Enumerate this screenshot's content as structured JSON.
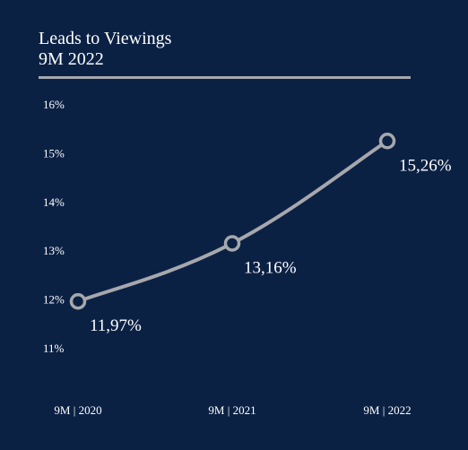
{
  "chart": {
    "title": "Leads to Viewings",
    "subtitle": "9M 2022"
  },
  "colors": {
    "background": "#0b2144",
    "line": "#a6a8ad",
    "marker_fill": "#0b2144",
    "text": "#ffffff"
  },
  "chart_data": {
    "type": "line",
    "title": "Leads to Viewings",
    "subtitle": "9M 2022",
    "categories": [
      "9M | 2020",
      "9M | 2021",
      "9M | 2022"
    ],
    "values": [
      11.97,
      13.16,
      15.26
    ],
    "data_labels": [
      "11,97%",
      "13,16%",
      "15,26%"
    ],
    "y_ticks": [
      "11%",
      "12%",
      "13%",
      "14%",
      "15%",
      "16%"
    ],
    "y_tick_values": [
      11,
      12,
      13,
      14,
      15,
      16
    ],
    "ylim": [
      11,
      16
    ],
    "xlabel": "",
    "ylabel": "",
    "grid": false,
    "legend": "none",
    "smooth": true
  }
}
